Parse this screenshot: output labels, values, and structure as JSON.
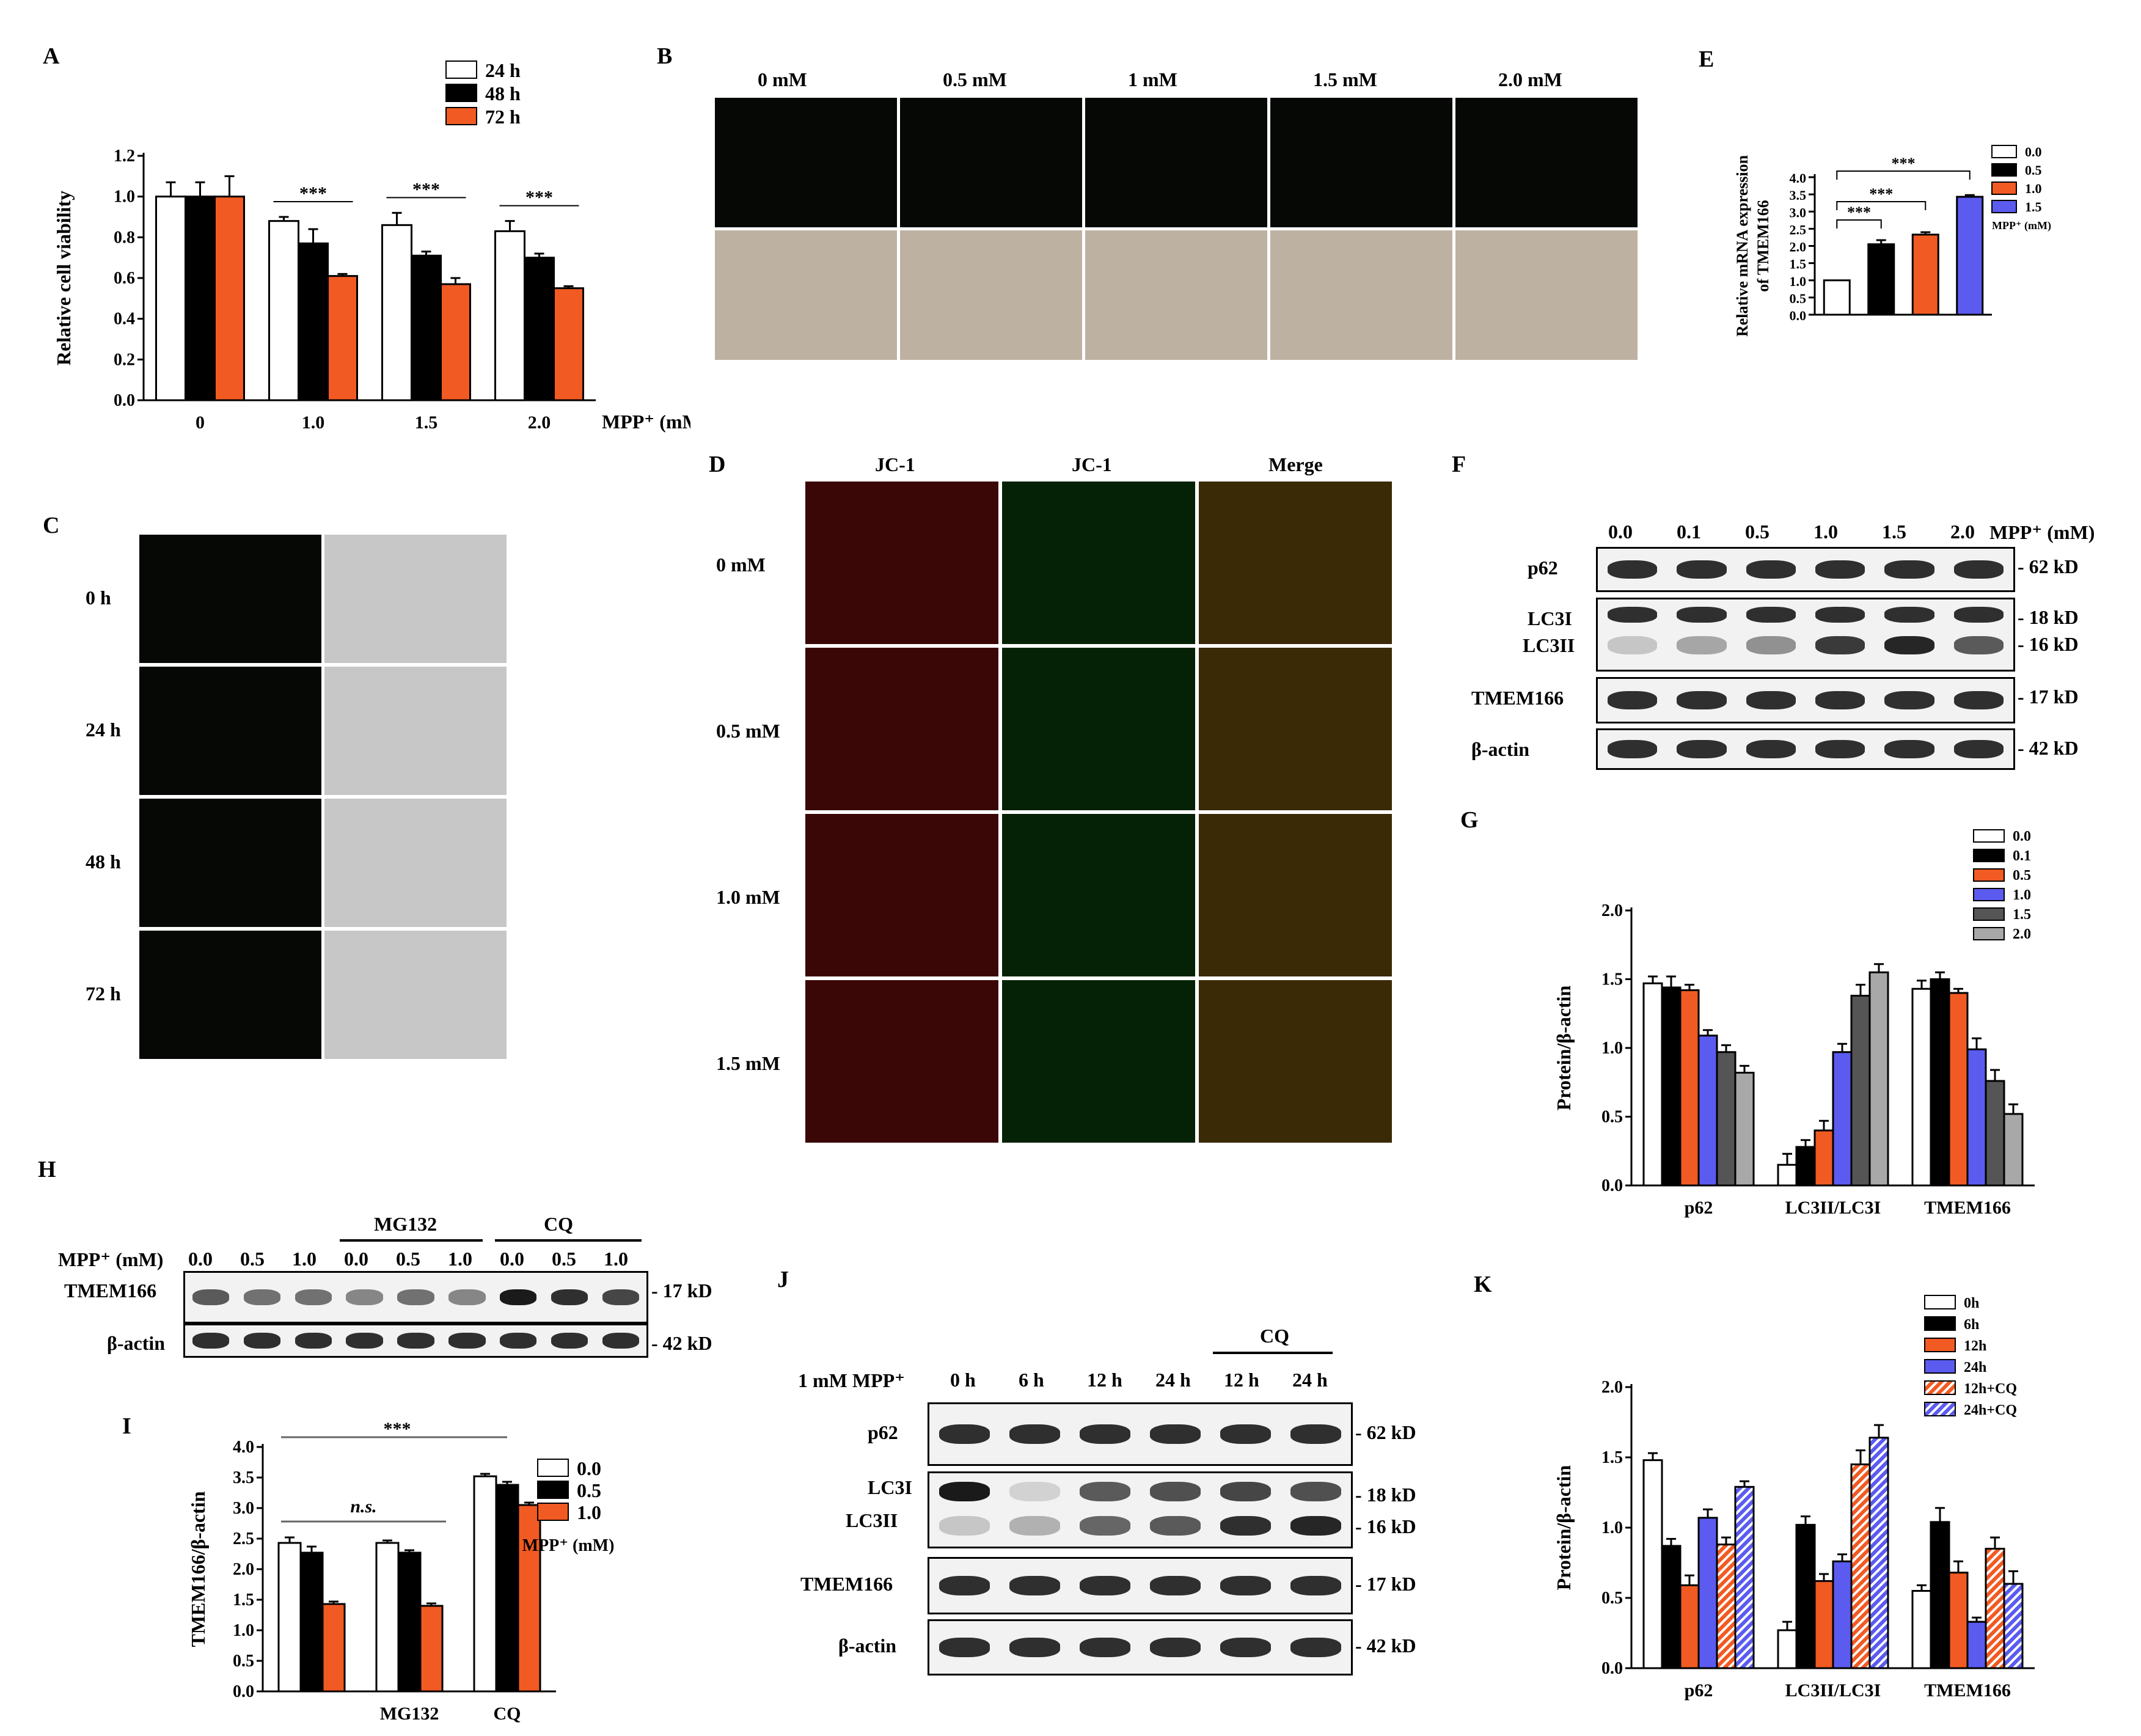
{
  "panels": {
    "A": "A",
    "B": "B",
    "C": "C",
    "D": "D",
    "E": "E",
    "F": "F",
    "G": "G",
    "H": "H",
    "I": "I",
    "J": "J",
    "K": "K"
  },
  "colors": {
    "white": "#ffffff",
    "black": "#000000",
    "orange": "#f15a22",
    "blue": "#5b5bf0",
    "darkgrey": "#555555",
    "lightgrey": "#a8a8a8"
  },
  "panelB": {
    "conc_labels": [
      "0 mM",
      "0.5 mM",
      "1 mM",
      "1.5 mM",
      "2.0 mM"
    ]
  },
  "panelC": {
    "time_labels": [
      "0 h",
      "24 h",
      "48 h",
      "72 h"
    ]
  },
  "panelD": {
    "col_labels": [
      "JC-1",
      "JC-1",
      "Merge"
    ],
    "row_labels": [
      "0 mM",
      "0.5 mM",
      "1.0 mM",
      "1.5 mM"
    ]
  },
  "panelF": {
    "lanes": [
      "0.0",
      "0.1",
      "0.5",
      "1.0",
      "1.5",
      "2.0"
    ],
    "unit": "MPP⁺ (mM)",
    "rows": [
      {
        "name": "p62",
        "kd": [
          "62 kD"
        ]
      },
      {
        "name": "LC3I",
        "name2": "LC3II",
        "kd": [
          "18 kD",
          "16 kD"
        ]
      },
      {
        "name": "TMEM166",
        "kd": [
          "17 kD"
        ]
      },
      {
        "name": "β-actin",
        "kd": [
          "42 kD"
        ]
      }
    ]
  },
  "panelH": {
    "mpp_label": "MPP⁺ (mM)",
    "groups": [
      "MG132",
      "CQ"
    ],
    "lanes": [
      "0.0",
      "0.5",
      "1.0",
      "0.0",
      "0.5",
      "1.0",
      "0.0",
      "0.5",
      "1.0"
    ],
    "rows": [
      {
        "name": "TMEM166",
        "kd": "17 kD"
      },
      {
        "name": "β-actin",
        "kd": "42 kD"
      }
    ]
  },
  "panelJ": {
    "treatment": "1 mM MPP⁺",
    "group": "CQ",
    "lanes": [
      "0 h",
      "6 h",
      "12 h",
      "24 h",
      "12 h",
      "24 h"
    ],
    "rows": [
      {
        "name": "p62",
        "kd": [
          "62 kD"
        ]
      },
      {
        "name": "LC3I",
        "name2": "LC3II",
        "kd": [
          "18 kD",
          "16 kD"
        ]
      },
      {
        "name": "TMEM166",
        "kd": [
          "17 kD"
        ]
      },
      {
        "name": "β-actin",
        "kd": [
          "42 kD"
        ]
      }
    ]
  },
  "chart_data": [
    {
      "id": "A",
      "type": "bar",
      "ylabel": "Relative cell viability",
      "xlabel": "MPP⁺ (mM)",
      "categories": [
        "0",
        "1.0",
        "1.5",
        "2.0"
      ],
      "ylim": [
        0,
        1.2
      ],
      "yticks": [
        "0.0",
        "0.2",
        "0.4",
        "0.6",
        "0.8",
        "1.0",
        "1.2"
      ],
      "series": [
        {
          "name": "24 h",
          "color": "white",
          "values": [
            1.0,
            0.88,
            0.86,
            0.83
          ],
          "errors": [
            0.07,
            0.02,
            0.06,
            0.05
          ]
        },
        {
          "name": "48 h",
          "color": "black",
          "values": [
            1.0,
            0.77,
            0.71,
            0.7
          ],
          "errors": [
            0.07,
            0.07,
            0.02,
            0.02
          ]
        },
        {
          "name": "72 h",
          "color": "orange",
          "values": [
            1.0,
            0.61,
            0.57,
            0.55
          ],
          "errors": [
            0.1,
            0.01,
            0.03,
            0.01
          ]
        }
      ],
      "annotations": [
        "***",
        "***",
        "***"
      ],
      "legend": "top-right"
    },
    {
      "id": "E",
      "type": "bar",
      "ylabel": "Relative mRNA expression",
      "ylabel2": "of TMEM166",
      "ylim": [
        0,
        4.0
      ],
      "yticks": [
        "0.0",
        "0.5",
        "1.0",
        "1.5",
        "2.0",
        "2.5",
        "3.0",
        "3.5",
        "4.0"
      ],
      "categories": [
        "0.0",
        "0.5",
        "1.0",
        "1.5"
      ],
      "values": [
        1.0,
        2.05,
        2.33,
        3.43
      ],
      "errors": [
        0.0,
        0.12,
        0.07,
        0.05
      ],
      "colors": [
        "white",
        "black",
        "orange",
        "blue"
      ],
      "legend_title": "MPP⁺ (mM)",
      "annotations": [
        "***",
        "***",
        "***"
      ],
      "legend": "right"
    },
    {
      "id": "G",
      "type": "bar",
      "ylabel": "Protein/β-actin",
      "categories": [
        "p62",
        "LC3II/LC3I",
        "TMEM166"
      ],
      "ylim": [
        0,
        2.0
      ],
      "yticks": [
        "0.0",
        "0.5",
        "1.0",
        "1.5",
        "2.0"
      ],
      "series": [
        {
          "name": "0.0",
          "color": "white",
          "values": [
            1.47,
            0.15,
            1.43
          ],
          "errors": [
            0.05,
            0.08,
            0.06
          ]
        },
        {
          "name": "0.1",
          "color": "black",
          "values": [
            1.44,
            0.28,
            1.5
          ],
          "errors": [
            0.08,
            0.05,
            0.05
          ]
        },
        {
          "name": "0.5",
          "color": "orange",
          "values": [
            1.42,
            0.4,
            1.4
          ],
          "errors": [
            0.04,
            0.07,
            0.03
          ]
        },
        {
          "name": "1.0",
          "color": "blue",
          "values": [
            1.09,
            0.97,
            0.99
          ],
          "errors": [
            0.04,
            0.06,
            0.08
          ]
        },
        {
          "name": "1.5",
          "color": "darkgrey",
          "values": [
            0.97,
            1.38,
            0.76
          ],
          "errors": [
            0.05,
            0.08,
            0.08
          ]
        },
        {
          "name": "2.0",
          "color": "lightgrey",
          "values": [
            0.82,
            1.55,
            0.52
          ],
          "errors": [
            0.05,
            0.06,
            0.07
          ]
        }
      ],
      "legend": "top-right"
    },
    {
      "id": "I",
      "type": "bar",
      "ylabel": "TMEM166/β-actin",
      "categories": [
        "",
        "MG132",
        "CQ"
      ],
      "ylim": [
        0,
        4.0
      ],
      "yticks": [
        "0.0",
        "0.5",
        "1.0",
        "1.5",
        "2.0",
        "2.5",
        "3.0",
        "3.5",
        "4.0"
      ],
      "series": [
        {
          "name": "0.0",
          "color": "white",
          "values": [
            2.43,
            2.43,
            3.52
          ],
          "errors": [
            0.09,
            0.04,
            0.04
          ]
        },
        {
          "name": "0.5",
          "color": "black",
          "values": [
            2.27,
            2.27,
            3.38
          ],
          "errors": [
            0.1,
            0.04,
            0.05
          ]
        },
        {
          "name": "1.0",
          "color": "orange",
          "values": [
            1.43,
            1.4,
            3.05
          ],
          "errors": [
            0.04,
            0.04,
            0.04
          ]
        }
      ],
      "legend_title": "MPP⁺ (mM)",
      "annotations": [
        "***",
        "n.s."
      ],
      "legend": "right"
    },
    {
      "id": "K",
      "type": "bar",
      "ylabel": "Protein/β-actin",
      "categories": [
        "p62",
        "LC3II/LC3I",
        "TMEM166"
      ],
      "ylim": [
        0,
        2.0
      ],
      "yticks": [
        "0.0",
        "0.5",
        "1.0",
        "1.5",
        "2.0"
      ],
      "series": [
        {
          "name": "0h",
          "color": "white",
          "values": [
            1.48,
            0.27,
            0.55
          ],
          "errors": [
            0.05,
            0.06,
            0.04
          ]
        },
        {
          "name": "6h",
          "color": "black",
          "values": [
            0.87,
            1.02,
            1.04
          ],
          "errors": [
            0.05,
            0.06,
            0.1
          ]
        },
        {
          "name": "12h",
          "color": "orange",
          "values": [
            0.59,
            0.62,
            0.68
          ],
          "errors": [
            0.07,
            0.05,
            0.08
          ]
        },
        {
          "name": "24h",
          "color": "blue",
          "values": [
            1.07,
            0.76,
            0.33
          ],
          "errors": [
            0.06,
            0.05,
            0.03
          ]
        },
        {
          "name": "12h+CQ",
          "color": "orange",
          "hatched": true,
          "values": [
            0.88,
            1.45,
            0.85
          ],
          "errors": [
            0.05,
            0.1,
            0.08
          ]
        },
        {
          "name": "24h+CQ",
          "color": "blue",
          "hatched": true,
          "values": [
            1.29,
            1.64,
            0.6
          ],
          "errors": [
            0.04,
            0.09,
            0.09
          ]
        }
      ],
      "legend": "top-right"
    }
  ]
}
